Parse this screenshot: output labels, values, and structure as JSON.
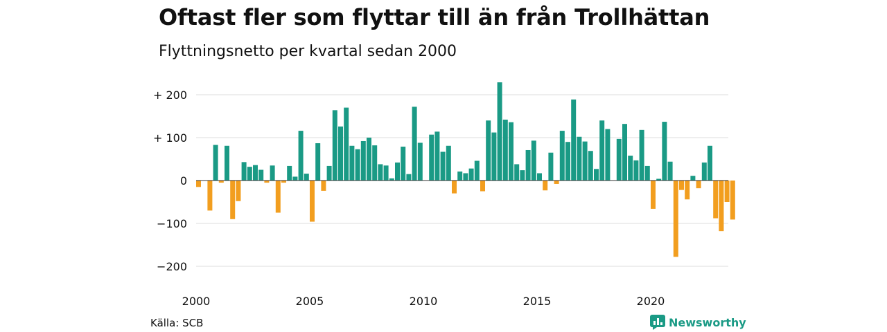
{
  "chart_data": {
    "type": "bar",
    "title": "Oftast fler som flyttar till än från Trollhättan",
    "subtitle": "Flyttningsnetto per kvartal sedan 2000",
    "x_start_year": 2000,
    "periods_per_year": 4,
    "x_ticks": [
      2000,
      2005,
      2010,
      2015,
      2020
    ],
    "y_ticks": [
      {
        "value": 200,
        "label": "+ 200"
      },
      {
        "value": 100,
        "label": "+ 100"
      },
      {
        "value": 0,
        "label": "0"
      },
      {
        "value": -100,
        "label": "−100"
      },
      {
        "value": -200,
        "label": "−200"
      }
    ],
    "ylim": [
      -220,
      235
    ],
    "grid": true,
    "colors": {
      "positive": "#1a9a85",
      "negative": "#f29e1f",
      "grid": "#dddddd",
      "zero": "#333333"
    },
    "values": [
      -15,
      0,
      -70,
      83,
      -5,
      81,
      -90,
      -48,
      43,
      32,
      36,
      25,
      -5,
      35,
      -75,
      -5,
      34,
      9,
      116,
      16,
      -96,
      87,
      -24,
      34,
      164,
      126,
      170,
      81,
      73,
      92,
      100,
      82,
      38,
      35,
      5,
      42,
      79,
      15,
      172,
      88,
      0,
      107,
      114,
      67,
      81,
      -30,
      21,
      17,
      28,
      46,
      -25,
      140,
      112,
      229,
      142,
      136,
      38,
      24,
      71,
      93,
      17,
      -23,
      65,
      -8,
      116,
      90,
      189,
      102,
      91,
      69,
      27,
      140,
      120,
      0,
      97,
      132,
      58,
      47,
      118,
      34,
      -66,
      4,
      137,
      44,
      -178,
      -22,
      -44,
      11,
      -18,
      42,
      81,
      -88,
      -118,
      -50,
      -91
    ]
  },
  "footer": {
    "source": "Källa: SCB",
    "brand": "Newsworthy",
    "brand_icon": "newsworthy-logo-icon"
  }
}
